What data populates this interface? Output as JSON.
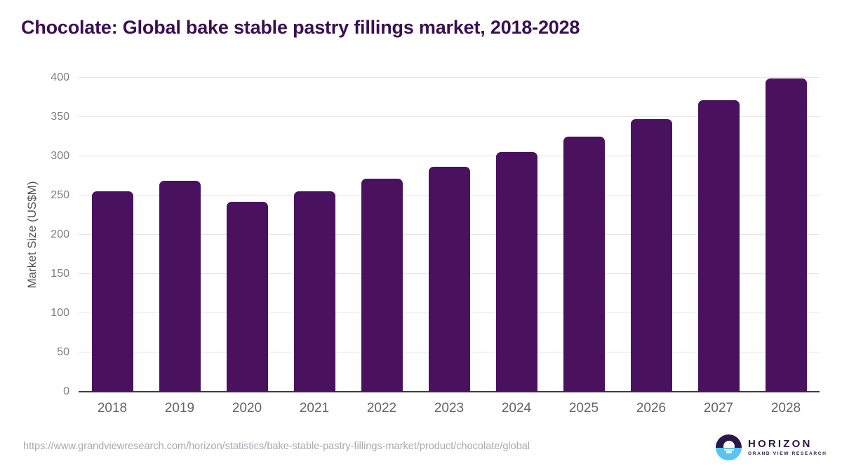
{
  "title": "Chocolate: Global bake stable pastry fillings market, 2018-2028",
  "chart_data": {
    "type": "bar",
    "title": "Chocolate: Global bake stable pastry fillings market, 2018-2028",
    "categories": [
      "2018",
      "2019",
      "2020",
      "2021",
      "2022",
      "2023",
      "2024",
      "2025",
      "2026",
      "2027",
      "2028"
    ],
    "values": [
      255,
      269,
      242,
      255,
      271,
      287,
      305,
      325,
      347,
      371,
      399
    ],
    "xlabel": "",
    "ylabel": "Market Size (US$M)",
    "ylim": [
      0,
      400
    ],
    "ytick_step": 50,
    "grid": "horizontal",
    "legend": "none",
    "bar_color": "#4a115e"
  },
  "footer": {
    "source_url": "https://www.grandviewresearch.com/horizon/statistics/bake-stable-pastry-fillings-market/product/chocolate/global",
    "logo": {
      "name": "HORIZON",
      "subtitle": "GRAND VIEW RESEARCH"
    }
  },
  "colors": {
    "title_text": "#3a0f53",
    "bar": "#4a115e",
    "y_tick_text": "#7d7e81",
    "x_tick_text": "#636467",
    "axis_label_text": "#4f5054",
    "gridline": "#e4e4e4",
    "baseline": "#3b3c3e",
    "source_text": "#a6a8ab",
    "logo_purple": "#2b1745",
    "logo_blue": "#5ac4f0"
  }
}
